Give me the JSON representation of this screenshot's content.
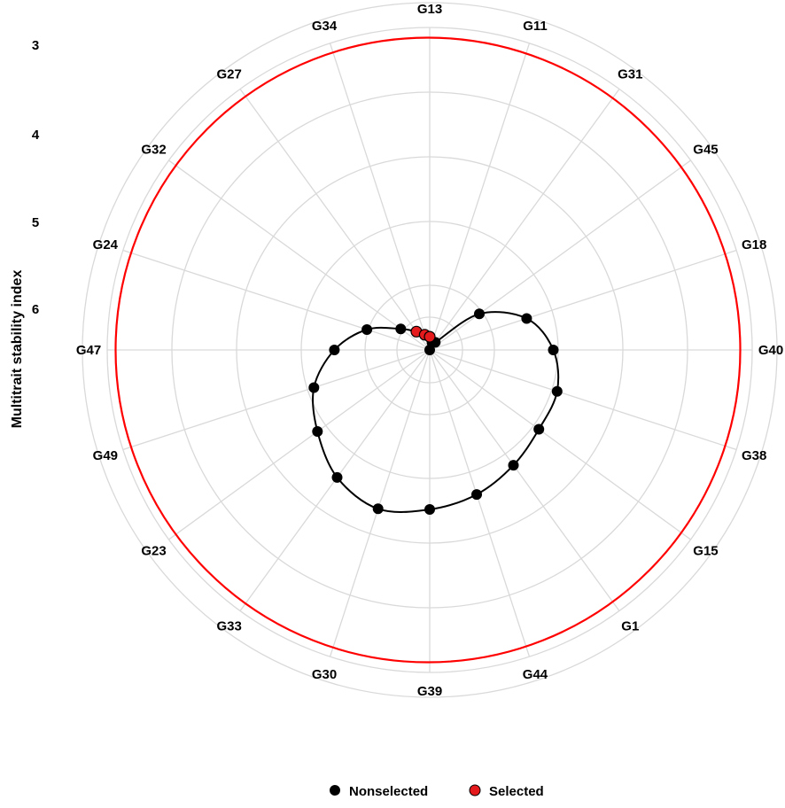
{
  "chart_data": {
    "type": "radar",
    "ylabel": "Multitrait stability index",
    "radial_ticks": [
      "3",
      "4",
      "5",
      "6"
    ],
    "categories": [
      "G13",
      "G11",
      "G31",
      "G45",
      "G18",
      "G40",
      "G38",
      "G15",
      "G1",
      "G44",
      "G39",
      "G30",
      "G33",
      "G23",
      "G49",
      "G47",
      "G24",
      "G32",
      "G27",
      "G34"
    ],
    "genotypes_ranked": [
      "G11",
      "G31",
      "G45",
      "G18",
      "G40",
      "G38",
      "G15",
      "G1",
      "G44",
      "G39",
      "G30",
      "G33",
      "G23",
      "G49",
      "G47",
      "G24",
      "G32",
      "G27",
      "G34",
      "G13"
    ],
    "values": [
      7.05,
      7.03,
      6.48,
      6.05,
      5.82,
      5.71,
      5.7,
      5.62,
      5.52,
      5.44,
      5.36,
      5.46,
      5.66,
      5.84,
      6.12,
      6.43,
      6.75,
      6.89,
      6.96,
      6.99
    ],
    "selected": [
      "G27",
      "G34",
      "G13"
    ],
    "threshold": 3.82,
    "legend": [
      "Nonselected",
      "Selected"
    ],
    "colors": {
      "nonselected": "#000000",
      "selected": "#e41a1c",
      "threshold": "#ff0000",
      "grid": "#d9d9d9"
    }
  }
}
